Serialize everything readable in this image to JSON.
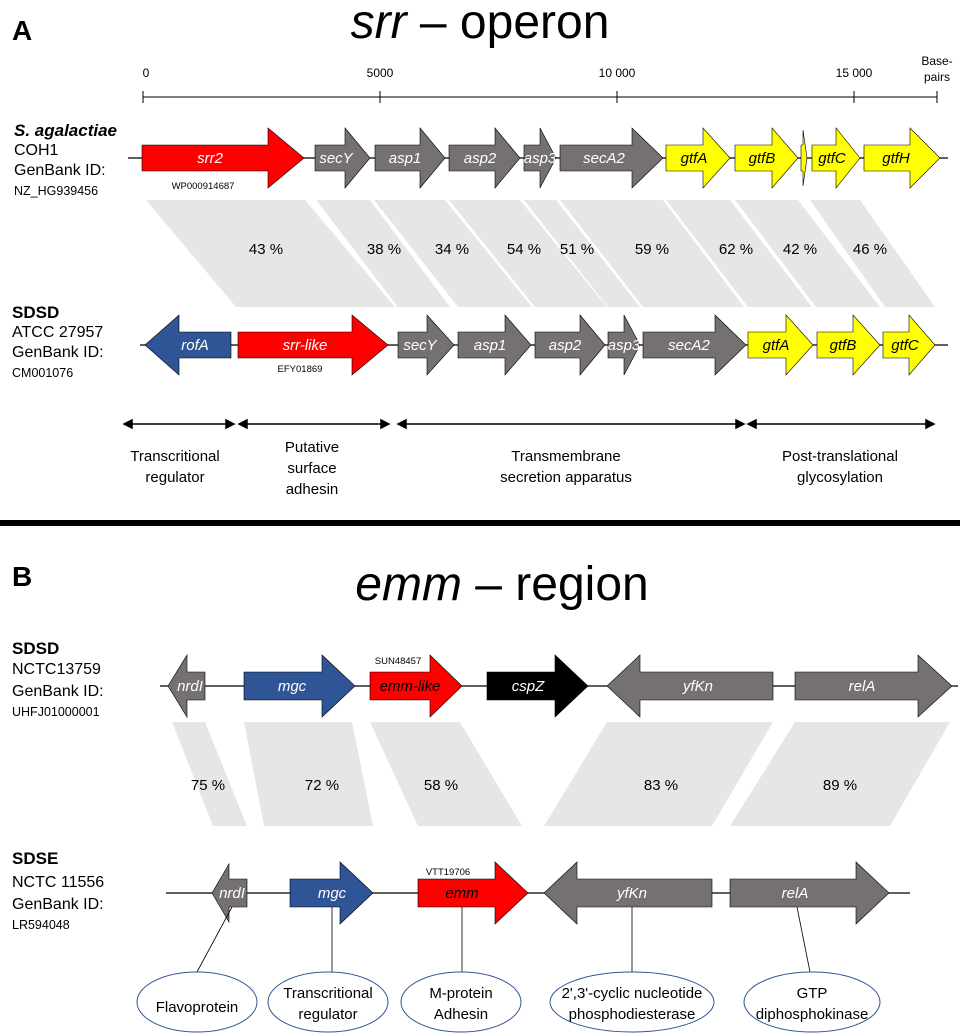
{
  "panelA": {
    "label": "A",
    "title_italic": "srr",
    "title_rest": " – operon",
    "scale": {
      "ticks": [
        {
          "value": 0,
          "label": "0"
        },
        {
          "value": 5000,
          "label": "5000"
        },
        {
          "value": 10000,
          "label": "10 000"
        },
        {
          "value": 15000,
          "label": "15 000"
        }
      ],
      "unit_line1": "Base-",
      "unit_line2": "pairs"
    },
    "species1": {
      "name": "S. agalactiae",
      "strain": "COH1",
      "genbank": "GenBank ID:",
      "accession": "NZ_HG939456"
    },
    "species2": {
      "name": "SDSD",
      "strain": "ATCC 27957",
      "genbank": "GenBank ID:",
      "accession": "CM001076"
    },
    "genes1": [
      {
        "name": "srr2",
        "color": "#ff0000"
      },
      {
        "name": "secY",
        "color": "#767171"
      },
      {
        "name": "asp1",
        "color": "#767171"
      },
      {
        "name": "asp2",
        "color": "#767171"
      },
      {
        "name": "asp3",
        "color": "#767171"
      },
      {
        "name": "secA2",
        "color": "#767171"
      },
      {
        "name": "gtfA",
        "color": "#ffff00"
      },
      {
        "name": "gtfB",
        "color": "#ffff00"
      },
      {
        "name": "",
        "color": "#ffff00"
      },
      {
        "name": "gtfC",
        "color": "#ffff00"
      },
      {
        "name": "gtfH",
        "color": "#ffff00"
      }
    ],
    "accession1": "WP000914687",
    "genes2": [
      {
        "name": "rofA",
        "color": "#2f5597"
      },
      {
        "name": "srr-like",
        "color": "#ff0000"
      },
      {
        "name": "secY",
        "color": "#767171"
      },
      {
        "name": "asp1",
        "color": "#767171"
      },
      {
        "name": "asp2",
        "color": "#767171"
      },
      {
        "name": "asp3",
        "color": "#767171"
      },
      {
        "name": "secA2",
        "color": "#767171"
      },
      {
        "name": "gtfA",
        "color": "#ffff00"
      },
      {
        "name": "gtfB",
        "color": "#ffff00"
      },
      {
        "name": "gtfC",
        "color": "#ffff00"
      }
    ],
    "accession2": "EFY01869",
    "identity": [
      "43 %",
      "38 %",
      "34 %",
      "54 %",
      "51 %",
      "59 %",
      "62 %",
      "42 %",
      "46 %"
    ],
    "functions": [
      {
        "lines": [
          "Transcritional",
          "regulator"
        ]
      },
      {
        "lines": [
          "Putative",
          "surface",
          "adhesin"
        ]
      },
      {
        "lines": [
          "Transmembrane",
          "secretion apparatus"
        ]
      },
      {
        "lines": [
          "Post-translational",
          "glycosylation"
        ]
      }
    ]
  },
  "panelB": {
    "label": "B",
    "title_italic": "emm",
    "title_rest": " – region",
    "species1": {
      "name": "SDSD",
      "strain": "NCTC13759",
      "genbank": "GenBank ID:",
      "accession": "UHFJ01000001"
    },
    "species2": {
      "name": "SDSE",
      "strain": "NCTC 11556",
      "genbank": "GenBank ID:",
      "accession": "LR594048"
    },
    "genes1": [
      {
        "name": "nrdI",
        "color": "#767171"
      },
      {
        "name": "mgc",
        "color": "#2f5597"
      },
      {
        "name": "emm-like",
        "color": "#ff0000"
      },
      {
        "name": "cspZ",
        "color": "#000000"
      },
      {
        "name": "yfKn",
        "color": "#767171"
      },
      {
        "name": "relA",
        "color": "#767171"
      }
    ],
    "accession1": "SUN48457",
    "genes2": [
      {
        "name": "nrdI",
        "color": "#767171"
      },
      {
        "name": "mgc",
        "color": "#2f5597"
      },
      {
        "name": "emm",
        "color": "#ff0000"
      },
      {
        "name": "yfKn",
        "color": "#767171"
      },
      {
        "name": "relA",
        "color": "#767171"
      }
    ],
    "accession2": "VTT19706",
    "identity": [
      "75 %",
      "72 %",
      "58 %",
      "83 %",
      "89 %"
    ],
    "annotations": [
      {
        "lines": [
          "Flavoprotein"
        ]
      },
      {
        "lines": [
          "Transcritional",
          "regulator"
        ]
      },
      {
        "lines": [
          "M-protein",
          "Adhesin"
        ]
      },
      {
        "lines": [
          "2',3'-cyclic nucleotide",
          "phosphodiesterase"
        ]
      },
      {
        "lines": [
          "GTP",
          "diphosphokinase"
        ]
      }
    ]
  }
}
